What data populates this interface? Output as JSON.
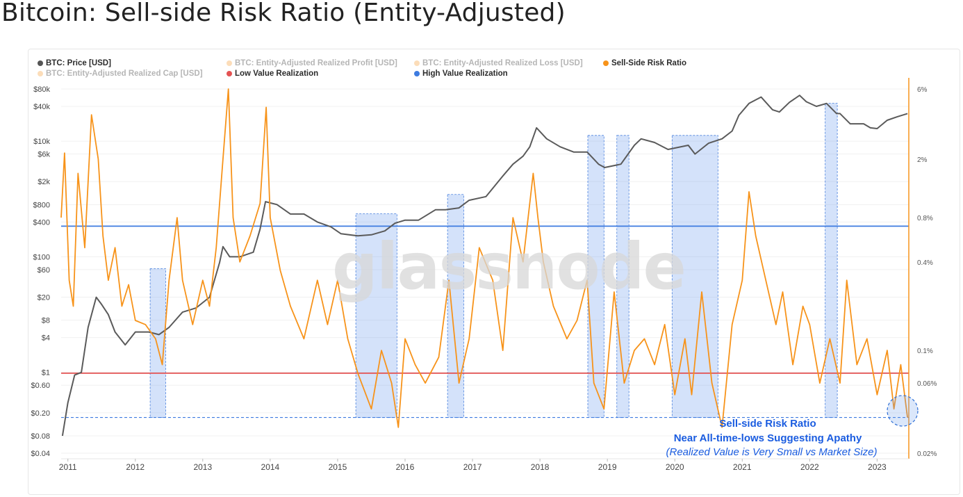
{
  "page": {
    "title": "Bitcoin: Sell-side Risk Ratio (Entity-Adjusted)"
  },
  "legend": [
    {
      "label": "BTC: Price [USD]",
      "color": "#555555",
      "active": true
    },
    {
      "label": "BTC: Entity-Adjusted Realized Profit [USD]",
      "color": "#f7a03a",
      "active": false
    },
    {
      "label": "BTC: Entity-Adjusted Realized Loss [USD]",
      "color": "#f7a03a",
      "active": false
    },
    {
      "label": "Sell-Side Risk Ratio",
      "color": "#f7931a",
      "active": true
    },
    {
      "label": "BTC: Entity-Adjusted Realized Cap [USD]",
      "color": "#f7a03a",
      "active": false
    },
    {
      "label": "Low Value Realization",
      "color": "#e45252",
      "active": true
    },
    {
      "label": "High Value Realization",
      "color": "#3d7be0",
      "active": true
    }
  ],
  "watermark": "glassnode",
  "annotation": {
    "line1": "Sell-side Risk Ratio",
    "line2": "Near All-time-lows Suggesting Apathy",
    "line3": "(Realized Value is Very Small vs Market Size)"
  },
  "chart_data": {
    "type": "line",
    "title": "Bitcoin: Sell-side Risk Ratio (Entity-Adjusted)",
    "x_ticks": [
      "2011",
      "2012",
      "2013",
      "2014",
      "2015",
      "2016",
      "2017",
      "2018",
      "2019",
      "2020",
      "2021",
      "2022",
      "2023"
    ],
    "x_range": [
      2010.9,
      2023.47
    ],
    "left_axis": {
      "scale": "log",
      "ticks": [
        "$80k",
        "$40k",
        "$10k",
        "$6k",
        "$2k",
        "$800",
        "$400",
        "$100",
        "$60",
        "$20",
        "$8",
        "$4",
        "$1",
        "$0.60",
        "$0.20",
        "$0.08",
        "$0.04"
      ],
      "tick_values": [
        80000,
        40000,
        10000,
        6000,
        2000,
        800,
        400,
        100,
        60,
        20,
        8,
        4,
        1,
        0.6,
        0.2,
        0.08,
        0.04
      ],
      "range": [
        0.04,
        80000
      ]
    },
    "right_axis": {
      "scale": "log",
      "ticks": [
        "6%",
        "2%",
        "0.8%",
        "0.4%",
        "0.1%",
        "0.06%",
        "0.02%"
      ],
      "tick_values": [
        6,
        2,
        0.8,
        0.4,
        0.1,
        0.06,
        0.02
      ],
      "range": [
        0.02,
        6
      ]
    },
    "thresholds": [
      {
        "name": "High Value Realization",
        "value": 0.7,
        "axis": "right",
        "color": "#3d7be0"
      },
      {
        "name": "Low Value Realization",
        "value": 0.07,
        "axis": "right",
        "color": "#e45252"
      }
    ],
    "low_baseline": {
      "value": 0.035,
      "axis": "right",
      "style": "dashed",
      "color": "#3d7be0"
    },
    "shaded_regions": [
      {
        "start": 2012.22,
        "end": 2012.45,
        "top": 0.36
      },
      {
        "start": 2015.27,
        "end": 2015.88,
        "top": 0.85
      },
      {
        "start": 2016.63,
        "end": 2016.87,
        "top": 1.15
      },
      {
        "start": 2018.71,
        "end": 2018.95,
        "top": 2.9
      },
      {
        "start": 2019.14,
        "end": 2019.32,
        "top": 2.9
      },
      {
        "start": 2019.96,
        "end": 2020.64,
        "top": 2.9
      },
      {
        "start": 2022.23,
        "end": 2022.41,
        "top": 4.8
      }
    ],
    "series": [
      {
        "name": "BTC: Price [USD]",
        "axis": "left",
        "color": "#5a5a5a",
        "x": [
          2010.92,
          2011.0,
          2011.1,
          2011.2,
          2011.3,
          2011.42,
          2011.5,
          2011.6,
          2011.7,
          2011.85,
          2012.0,
          2012.2,
          2012.35,
          2012.5,
          2012.7,
          2012.9,
          2013.1,
          2013.25,
          2013.3,
          2013.4,
          2013.55,
          2013.75,
          2013.85,
          2013.93,
          2014.1,
          2014.3,
          2014.5,
          2014.7,
          2014.9,
          2015.05,
          2015.3,
          2015.5,
          2015.7,
          2015.85,
          2016.0,
          2016.2,
          2016.45,
          2016.6,
          2016.8,
          2016.95,
          2017.2,
          2017.45,
          2017.6,
          2017.75,
          2017.85,
          2017.95,
          2018.1,
          2018.3,
          2018.5,
          2018.7,
          2018.87,
          2018.96,
          2019.2,
          2019.4,
          2019.5,
          2019.7,
          2019.9,
          2020.2,
          2020.3,
          2020.5,
          2020.7,
          2020.85,
          2020.95,
          2021.1,
          2021.28,
          2021.45,
          2021.55,
          2021.7,
          2021.85,
          2021.95,
          2022.1,
          2022.25,
          2022.4,
          2022.45,
          2022.6,
          2022.8,
          2022.9,
          2023.0,
          2023.15,
          2023.3,
          2023.45
        ],
        "values": [
          0.08,
          0.3,
          0.9,
          1.0,
          6,
          20,
          15,
          10,
          5,
          3,
          5,
          5,
          4.5,
          6,
          11,
          13,
          20,
          80,
          150,
          100,
          100,
          120,
          300,
          900,
          800,
          550,
          550,
          400,
          330,
          250,
          230,
          240,
          280,
          380,
          430,
          430,
          650,
          650,
          700,
          950,
          1100,
          2500,
          4000,
          5500,
          8000,
          17000,
          11000,
          8000,
          6500,
          6500,
          4000,
          3500,
          4000,
          8500,
          11000,
          9500,
          7200,
          8500,
          6000,
          9200,
          11000,
          15000,
          28000,
          45000,
          58000,
          35000,
          32000,
          47000,
          62000,
          48000,
          40000,
          45000,
          30000,
          30000,
          20000,
          20000,
          17000,
          16500,
          23000,
          26500,
          30000
        ]
      },
      {
        "name": "Sell-Side Risk Ratio",
        "axis": "right",
        "color": "#f7931a",
        "x": [
          2010.9,
          2010.95,
          2011.02,
          2011.08,
          2011.15,
          2011.25,
          2011.35,
          2011.45,
          2011.52,
          2011.6,
          2011.7,
          2011.8,
          2011.9,
          2012.0,
          2012.15,
          2012.3,
          2012.4,
          2012.5,
          2012.62,
          2012.7,
          2012.85,
          2013.0,
          2013.1,
          2013.2,
          2013.3,
          2013.38,
          2013.45,
          2013.55,
          2013.7,
          2013.85,
          2013.94,
          2014.0,
          2014.15,
          2014.3,
          2014.5,
          2014.7,
          2014.85,
          2015.0,
          2015.15,
          2015.3,
          2015.5,
          2015.65,
          2015.8,
          2015.9,
          2016.0,
          2016.15,
          2016.3,
          2016.5,
          2016.65,
          2016.8,
          2016.95,
          2017.1,
          2017.3,
          2017.45,
          2017.6,
          2017.75,
          2017.9,
          2017.97,
          2018.05,
          2018.2,
          2018.4,
          2018.55,
          2018.7,
          2018.8,
          2018.95,
          2019.1,
          2019.25,
          2019.4,
          2019.55,
          2019.7,
          2019.85,
          2020.0,
          2020.15,
          2020.25,
          2020.4,
          2020.55,
          2020.7,
          2020.85,
          2021.0,
          2021.1,
          2021.2,
          2021.35,
          2021.5,
          2021.6,
          2021.75,
          2021.9,
          2022.0,
          2022.15,
          2022.3,
          2022.45,
          2022.55,
          2022.7,
          2022.85,
          2023.0,
          2023.15,
          2023.25,
          2023.35,
          2023.45
        ],
        "values": [
          0.8,
          2.2,
          0.3,
          0.2,
          1.6,
          0.5,
          4.0,
          2.0,
          0.6,
          0.3,
          0.5,
          0.2,
          0.28,
          0.16,
          0.15,
          0.12,
          0.08,
          0.3,
          0.8,
          0.3,
          0.15,
          0.3,
          0.2,
          0.5,
          2.0,
          6.0,
          0.8,
          0.4,
          0.6,
          1.0,
          4.5,
          0.8,
          0.35,
          0.2,
          0.12,
          0.3,
          0.15,
          0.3,
          0.12,
          0.07,
          0.04,
          0.1,
          0.06,
          0.03,
          0.12,
          0.08,
          0.06,
          0.09,
          0.3,
          0.06,
          0.12,
          0.5,
          0.3,
          0.1,
          0.8,
          0.4,
          1.6,
          0.8,
          0.4,
          0.2,
          0.12,
          0.16,
          0.3,
          0.06,
          0.04,
          0.25,
          0.06,
          0.1,
          0.12,
          0.08,
          0.15,
          0.05,
          0.12,
          0.05,
          0.25,
          0.06,
          0.03,
          0.15,
          0.3,
          1.2,
          0.6,
          0.3,
          0.15,
          0.25,
          0.08,
          0.2,
          0.15,
          0.06,
          0.12,
          0.06,
          0.3,
          0.08,
          0.12,
          0.05,
          0.1,
          0.04,
          0.08,
          0.035
        ]
      }
    ]
  }
}
